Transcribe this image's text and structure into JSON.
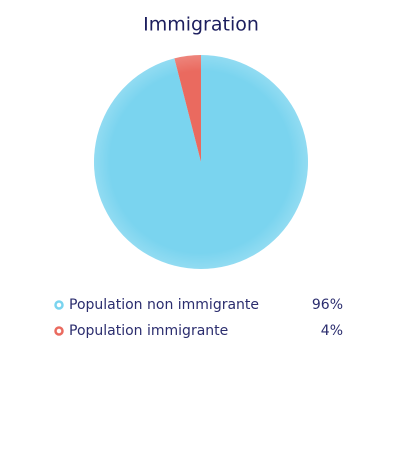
{
  "chart_data": {
    "type": "pie",
    "title": "Immigration",
    "categories": [
      "Population non immigrante",
      "Population immigrante"
    ],
    "values": [
      96,
      4
    ],
    "value_labels": [
      "96%",
      "4%"
    ],
    "colors": [
      "#7ad4ef",
      "#ea6a5f"
    ]
  }
}
